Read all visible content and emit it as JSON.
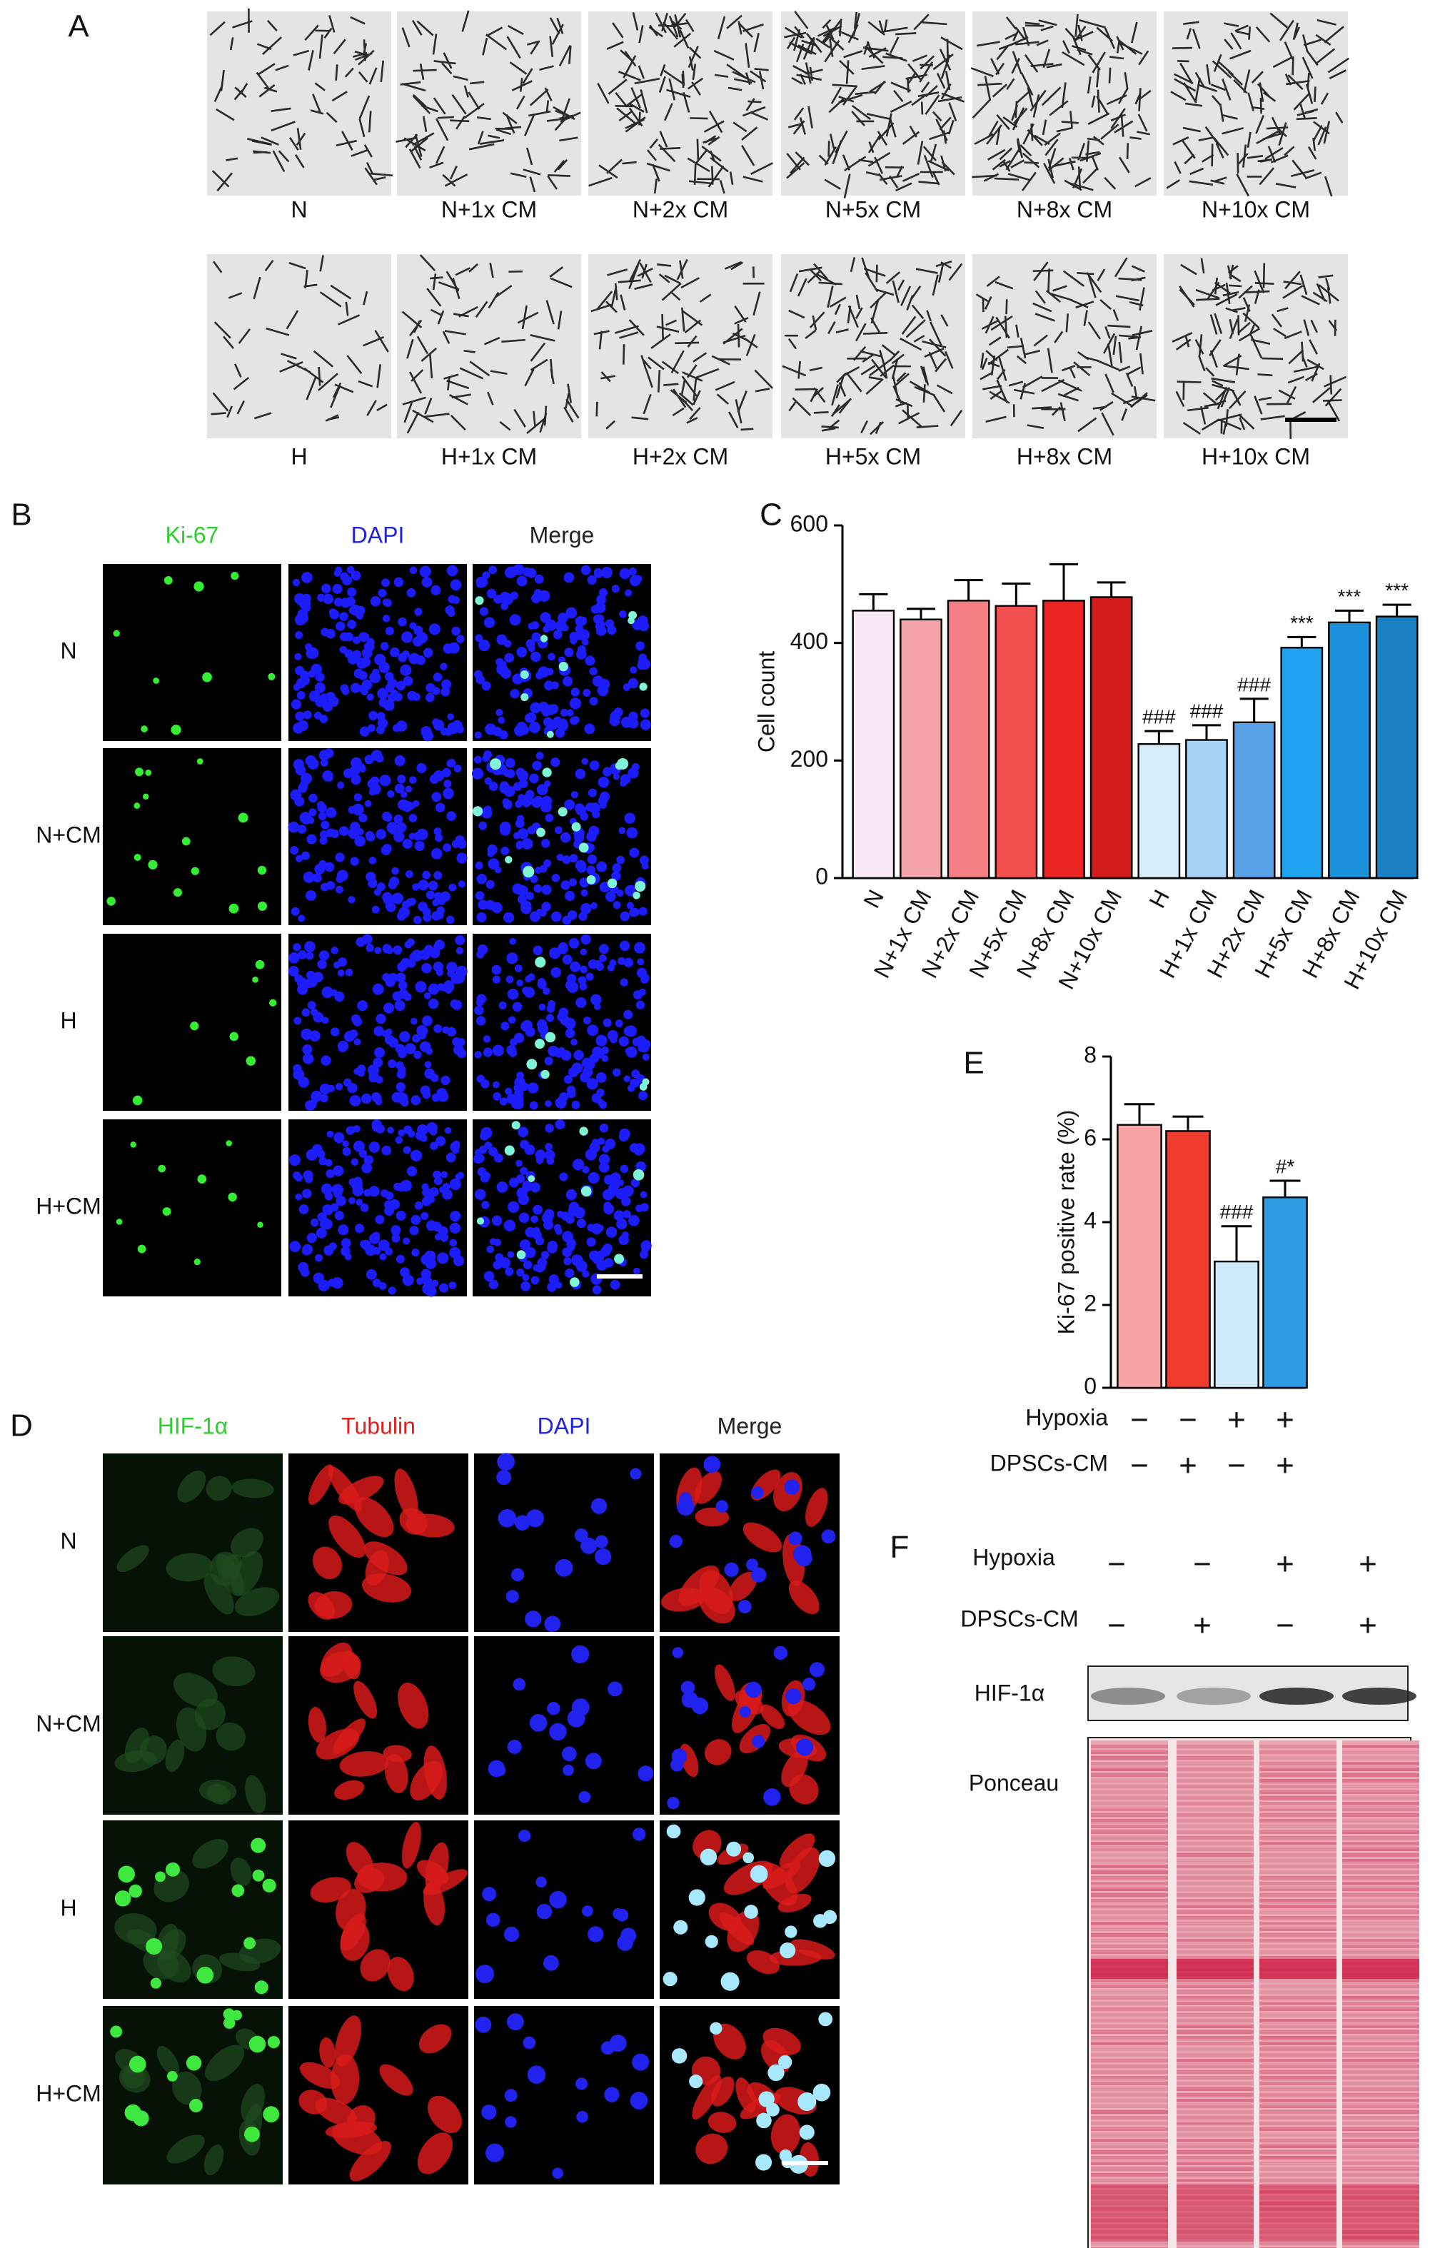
{
  "panels": {
    "A": {
      "label": "A",
      "top_labels": [
        "N",
        "N+1x CM",
        "N+2x CM",
        "N+5x CM",
        "N+8x CM",
        "N+10x CM"
      ],
      "bottom_labels": [
        "H",
        "H+1x CM",
        "H+2x CM",
        "H+5x CM",
        "H+8x CM",
        "H+10x CM"
      ]
    },
    "B": {
      "label": "B",
      "columns": [
        "Ki-67",
        "DAPI",
        "Merge"
      ],
      "rows": [
        "N",
        "N+CM",
        "H",
        "H+CM"
      ]
    },
    "C": {
      "label": "C"
    },
    "D": {
      "label": "D",
      "columns": [
        "HIF-1α",
        "Tubulin",
        "DAPI",
        "Merge"
      ],
      "rows": [
        "N",
        "N+CM",
        "H",
        "H+CM"
      ]
    },
    "E": {
      "label": "E"
    },
    "F": {
      "label": "F",
      "conditions": [
        {
          "name": "Hypoxia",
          "signs": [
            "−",
            "−",
            "+",
            "+"
          ]
        },
        {
          "name": "DPSCs-CM",
          "signs": [
            "−",
            "+",
            "−",
            "+"
          ]
        }
      ],
      "bands": [
        "HIF-1α",
        "Ponceau"
      ]
    }
  },
  "chart_data": [
    {
      "type": "bar",
      "ylabel": "Cell count",
      "categories": [
        "N",
        "N+1x CM",
        "N+2x CM",
        "N+5x CM",
        "N+8x CM",
        "N+10x CM",
        "H",
        "H+1x CM",
        "H+2x CM",
        "H+5x CM",
        "H+8x CM",
        "H+10x CM"
      ],
      "values": [
        455,
        440,
        472,
        463,
        472,
        478,
        228,
        235,
        265,
        392,
        435,
        445
      ],
      "errors": [
        28,
        18,
        35,
        38,
        62,
        25,
        22,
        25,
        40,
        18,
        20,
        20
      ],
      "value_annotations": [
        null,
        null,
        null,
        null,
        null,
        null,
        "###",
        "###",
        "###",
        "***",
        "***",
        "***"
      ],
      "colors": [
        "#fbe8f6",
        "#f5a4aa",
        "#f47e82",
        "#f2504e",
        "#ea2420",
        "#d21c1c",
        "#d8edfb",
        "#a8d2f4",
        "#5aa2e8",
        "#1fa3f0",
        "#1a90da",
        "#1b7fc4"
      ],
      "ylim": [
        0,
        600
      ],
      "yticks": [
        0,
        200,
        400,
        600
      ]
    },
    {
      "type": "bar",
      "ylabel": "Ki-67 positive rate (%)",
      "values": [
        6.35,
        6.2,
        3.05,
        4.6
      ],
      "errors": [
        0.5,
        0.35,
        0.85,
        0.4
      ],
      "value_annotations": [
        null,
        null,
        "###",
        "#*"
      ],
      "colors": [
        "#f8a4a4",
        "#f03c2c",
        "#cfeafa",
        "#2f9be3"
      ],
      "conditions": [
        {
          "name": "Hypoxia",
          "signs": [
            "−",
            "−",
            "+",
            "+"
          ]
        },
        {
          "name": "DPSCs-CM",
          "signs": [
            "−",
            "+",
            "−",
            "+"
          ]
        }
      ],
      "ylim": [
        0,
        8
      ],
      "yticks": [
        0,
        2,
        4,
        6,
        8
      ]
    }
  ]
}
